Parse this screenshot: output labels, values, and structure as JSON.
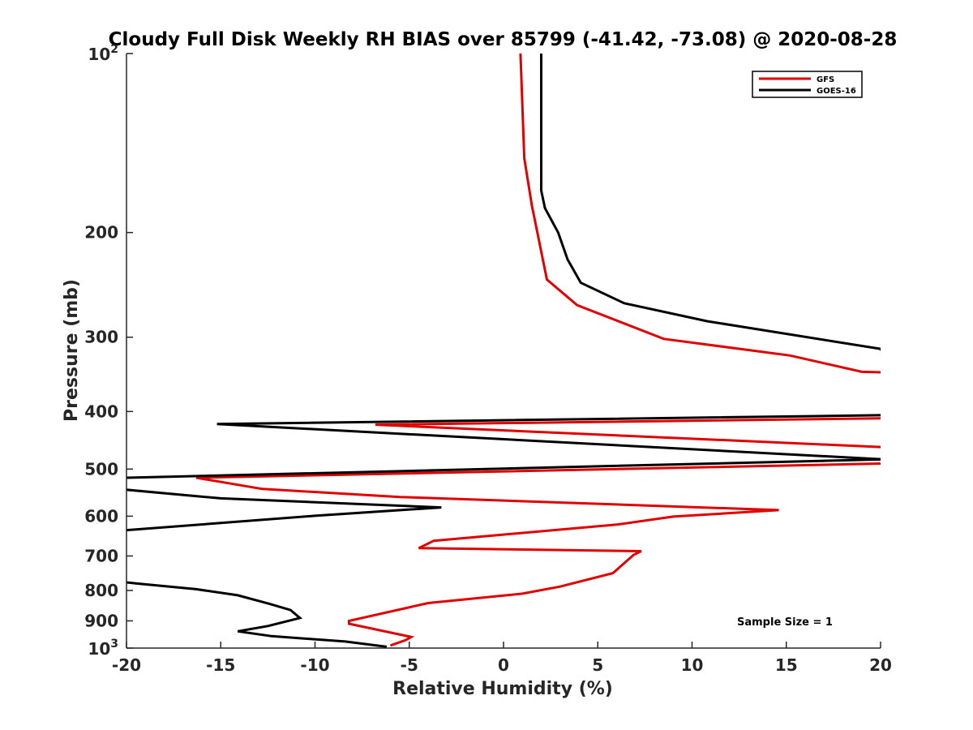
{
  "chart_data": {
    "type": "line",
    "title": "Cloudy Full Disk Weekly RH BIAS over 85799 (-41.42, -73.08) @ 2020-08-28",
    "xlabel": "Relative Humidity (%)",
    "ylabel": "Pressure (mb)",
    "xlim": [
      -20,
      20
    ],
    "ylim": [
      100,
      1000
    ],
    "y_scale": "log",
    "y_reversed": true,
    "grid": false,
    "legend_position": "top-right",
    "x_ticks": [
      "-20",
      "-15",
      "-10",
      "-5",
      "0",
      "5",
      "10",
      "15",
      "20"
    ],
    "y_ticks": [
      {
        "value": 100,
        "base": "10",
        "exp": "2",
        "label": ""
      },
      {
        "value": 200,
        "base": "",
        "exp": "",
        "label": "200"
      },
      {
        "value": 300,
        "base": "",
        "exp": "",
        "label": "300"
      },
      {
        "value": 400,
        "base": "",
        "exp": "",
        "label": "400"
      },
      {
        "value": 500,
        "base": "",
        "exp": "",
        "label": "500"
      },
      {
        "value": 600,
        "base": "",
        "exp": "",
        "label": "600"
      },
      {
        "value": 700,
        "base": "",
        "exp": "",
        "label": "700"
      },
      {
        "value": 800,
        "base": "",
        "exp": "",
        "label": "800"
      },
      {
        "value": 900,
        "base": "",
        "exp": "",
        "label": "900"
      },
      {
        "value": 1000,
        "base": "10",
        "exp": "3",
        "label": ""
      }
    ],
    "annotation": "Sample Size = 1",
    "series": [
      {
        "name": "GFS",
        "color": "#e00000",
        "points": [
          [
            0.9,
            100
          ],
          [
            1.1,
            150
          ],
          [
            1.5,
            180
          ],
          [
            2.3,
            240
          ],
          [
            3.9,
            265
          ],
          [
            8.5,
            302
          ],
          [
            15.2,
            322
          ],
          [
            19.0,
            343
          ],
          [
            22,
            345
          ],
          [
            22,
            410
          ],
          [
            -6.8,
            421
          ],
          [
            22,
            462
          ],
          [
            22,
            488
          ],
          [
            -16.3,
            517
          ],
          [
            -12.8,
            540
          ],
          [
            -5.5,
            557
          ],
          [
            14.6,
            586
          ],
          [
            9.0,
            601
          ],
          [
            6.0,
            620
          ],
          [
            -3.7,
            660
          ],
          [
            -4.5,
            679
          ],
          [
            7.3,
            687
          ],
          [
            6.9,
            697
          ],
          [
            5.8,
            748
          ],
          [
            3.0,
            788
          ],
          [
            1.0,
            810
          ],
          [
            -4.0,
            840
          ],
          [
            -8.2,
            900
          ],
          [
            -8.2,
            910
          ],
          [
            -4.9,
            958
          ],
          [
            -5.2,
            970
          ],
          [
            -5.6,
            980
          ],
          [
            -6.0,
            990
          ]
        ]
      },
      {
        "name": "GOES-16",
        "color": "#000000",
        "points": [
          [
            2.0,
            100
          ],
          [
            2.0,
            170
          ],
          [
            2.2,
            182
          ],
          [
            2.9,
            200
          ],
          [
            3.4,
            222
          ],
          [
            4.1,
            243
          ],
          [
            6.4,
            263
          ],
          [
            10.8,
            282
          ],
          [
            20.0,
            314
          ],
          [
            22,
            405
          ],
          [
            -15.2,
            420
          ],
          [
            22,
            485
          ],
          [
            22,
            480
          ],
          [
            -21,
            518
          ],
          [
            -21,
            538
          ],
          [
            -15.0,
            560
          ],
          [
            -3.3,
            580
          ],
          [
            -10.0,
            599
          ],
          [
            -21,
            637
          ],
          [
            -21,
            769
          ],
          [
            -19.4,
            779
          ],
          [
            -16.3,
            796
          ],
          [
            -14.1,
            815
          ],
          [
            -12.4,
            843
          ],
          [
            -11.3,
            863
          ],
          [
            -10.8,
            890
          ],
          [
            -12.5,
            918
          ],
          [
            -14.1,
            937
          ],
          [
            -12.3,
            955
          ],
          [
            -8.4,
            975
          ],
          [
            -6.2,
            995
          ]
        ]
      }
    ]
  }
}
